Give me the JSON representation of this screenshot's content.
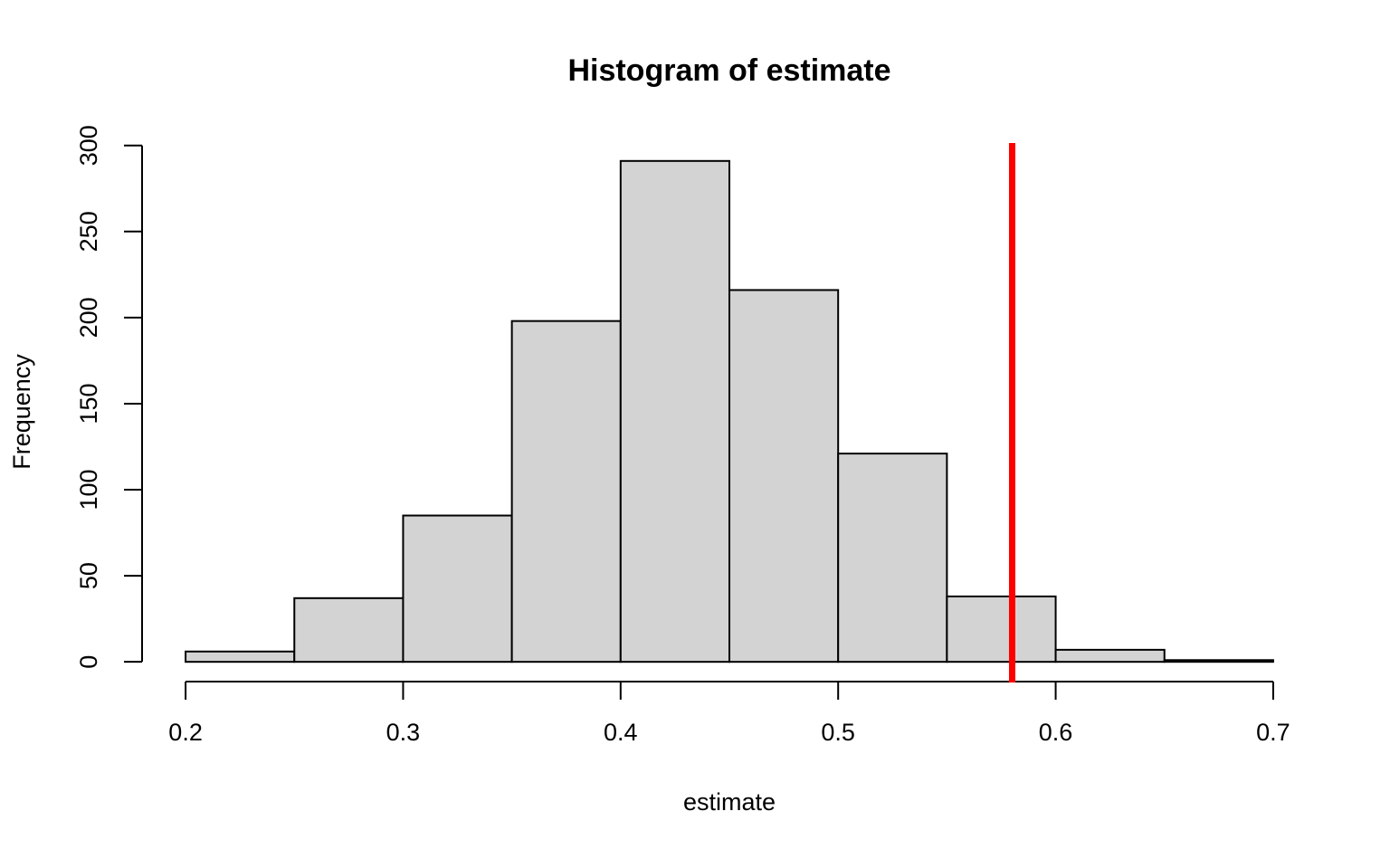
{
  "chart_data": {
    "type": "histogram",
    "title": "Histogram of estimate",
    "x_label": "estimate",
    "y_label": "Frequency",
    "bins": [
      0.2,
      0.25,
      0.3,
      0.35,
      0.4,
      0.45,
      0.5,
      0.55,
      0.6,
      0.65,
      0.7
    ],
    "values": [
      6,
      37,
      85,
      198,
      291,
      216,
      121,
      38,
      7,
      1
    ],
    "color": "#d3d3d3",
    "xlim": [
      0.18,
      0.72
    ],
    "xticks": [
      0.2,
      0.3,
      0.4,
      0.5,
      0.6,
      0.7
    ],
    "ylim": [
      -12,
      303
    ],
    "yticks": [
      0,
      50,
      100,
      150,
      200,
      250,
      300
    ],
    "reference_line": {
      "value": 0.58,
      "color": "#ff0000"
    },
    "grid": false
  }
}
